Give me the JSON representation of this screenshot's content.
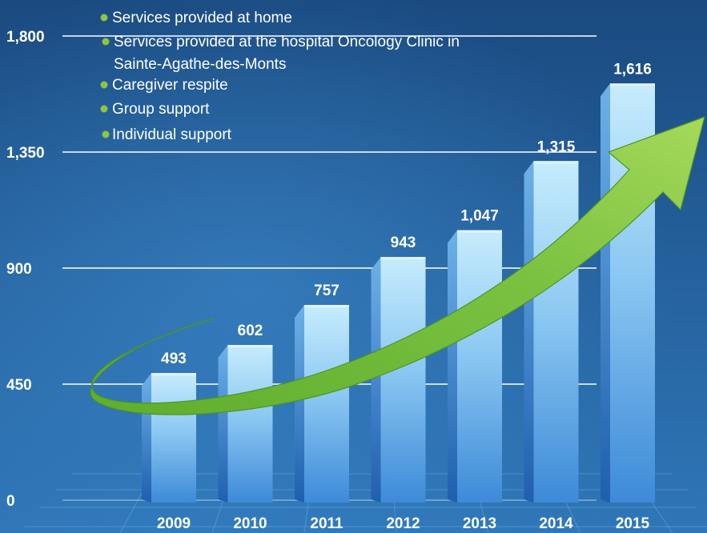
{
  "chart_data": {
    "type": "bar",
    "categories": [
      "2009",
      "2010",
      "2011",
      "2012",
      "2013",
      "2014",
      "2015"
    ],
    "values": [
      493,
      602,
      757,
      943,
      1047,
      1315,
      1616
    ],
    "value_labels": [
      "493",
      "602",
      "757",
      "943",
      "1,047",
      "1,315",
      "1,616"
    ],
    "yticks": [
      0,
      450,
      900,
      1350,
      1800
    ],
    "ytick_labels": [
      "0",
      "450",
      "900",
      "1,350",
      "1,800"
    ],
    "ylim": [
      0,
      1800
    ],
    "grid": true,
    "legend_position": "top-left",
    "legend": [
      "Services provided at home",
      "Services provided at the hospital Oncology Clinic in",
      "Sainte-Agathe-des-Monts",
      "Caregiver respite",
      "Group support",
      "Individual support"
    ],
    "colors": {
      "background_top": "#1a4a80",
      "background_bottom": "#2f77b8",
      "bar_light": "#bfe8fb",
      "bar_dark": "#3d8ad8",
      "bullet": "#8dc63f",
      "arrow": "#7cc242",
      "gridline": "#ffffff",
      "text": "#ffffff"
    }
  }
}
